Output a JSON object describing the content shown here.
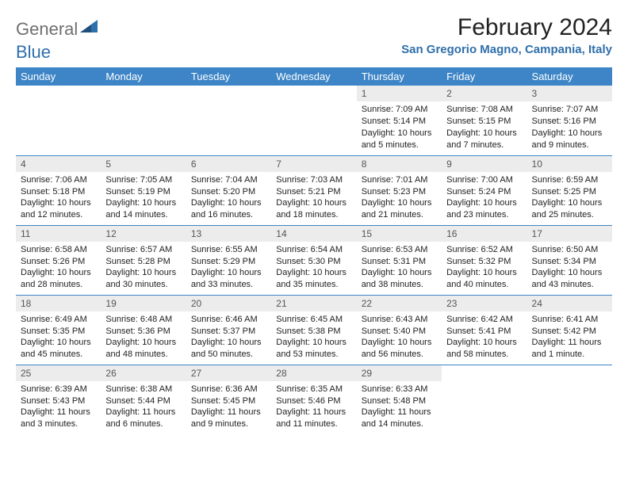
{
  "brand": {
    "word1": "General",
    "word2": "Blue"
  },
  "title": "February 2024",
  "location": "San Gregorio Magno, Campania, Italy",
  "colors": {
    "header_bg": "#3d85c6",
    "header_text": "#ffffff",
    "daynum_bg": "#ececec",
    "daynum_text": "#555555",
    "rule": "#3d85c6",
    "brand_gray": "#6f6f6f",
    "brand_blue": "#2f6fab"
  },
  "weekdays": [
    "Sunday",
    "Monday",
    "Tuesday",
    "Wednesday",
    "Thursday",
    "Friday",
    "Saturday"
  ],
  "weeks": [
    [
      {
        "blank": true
      },
      {
        "blank": true
      },
      {
        "blank": true
      },
      {
        "blank": true
      },
      {
        "d": "1",
        "sr": "Sunrise: 7:09 AM",
        "ss": "Sunset: 5:14 PM",
        "dl1": "Daylight: 10 hours",
        "dl2": "and 5 minutes."
      },
      {
        "d": "2",
        "sr": "Sunrise: 7:08 AM",
        "ss": "Sunset: 5:15 PM",
        "dl1": "Daylight: 10 hours",
        "dl2": "and 7 minutes."
      },
      {
        "d": "3",
        "sr": "Sunrise: 7:07 AM",
        "ss": "Sunset: 5:16 PM",
        "dl1": "Daylight: 10 hours",
        "dl2": "and 9 minutes."
      }
    ],
    [
      {
        "d": "4",
        "sr": "Sunrise: 7:06 AM",
        "ss": "Sunset: 5:18 PM",
        "dl1": "Daylight: 10 hours",
        "dl2": "and 12 minutes."
      },
      {
        "d": "5",
        "sr": "Sunrise: 7:05 AM",
        "ss": "Sunset: 5:19 PM",
        "dl1": "Daylight: 10 hours",
        "dl2": "and 14 minutes."
      },
      {
        "d": "6",
        "sr": "Sunrise: 7:04 AM",
        "ss": "Sunset: 5:20 PM",
        "dl1": "Daylight: 10 hours",
        "dl2": "and 16 minutes."
      },
      {
        "d": "7",
        "sr": "Sunrise: 7:03 AM",
        "ss": "Sunset: 5:21 PM",
        "dl1": "Daylight: 10 hours",
        "dl2": "and 18 minutes."
      },
      {
        "d": "8",
        "sr": "Sunrise: 7:01 AM",
        "ss": "Sunset: 5:23 PM",
        "dl1": "Daylight: 10 hours",
        "dl2": "and 21 minutes."
      },
      {
        "d": "9",
        "sr": "Sunrise: 7:00 AM",
        "ss": "Sunset: 5:24 PM",
        "dl1": "Daylight: 10 hours",
        "dl2": "and 23 minutes."
      },
      {
        "d": "10",
        "sr": "Sunrise: 6:59 AM",
        "ss": "Sunset: 5:25 PM",
        "dl1": "Daylight: 10 hours",
        "dl2": "and 25 minutes."
      }
    ],
    [
      {
        "d": "11",
        "sr": "Sunrise: 6:58 AM",
        "ss": "Sunset: 5:26 PM",
        "dl1": "Daylight: 10 hours",
        "dl2": "and 28 minutes."
      },
      {
        "d": "12",
        "sr": "Sunrise: 6:57 AM",
        "ss": "Sunset: 5:28 PM",
        "dl1": "Daylight: 10 hours",
        "dl2": "and 30 minutes."
      },
      {
        "d": "13",
        "sr": "Sunrise: 6:55 AM",
        "ss": "Sunset: 5:29 PM",
        "dl1": "Daylight: 10 hours",
        "dl2": "and 33 minutes."
      },
      {
        "d": "14",
        "sr": "Sunrise: 6:54 AM",
        "ss": "Sunset: 5:30 PM",
        "dl1": "Daylight: 10 hours",
        "dl2": "and 35 minutes."
      },
      {
        "d": "15",
        "sr": "Sunrise: 6:53 AM",
        "ss": "Sunset: 5:31 PM",
        "dl1": "Daylight: 10 hours",
        "dl2": "and 38 minutes."
      },
      {
        "d": "16",
        "sr": "Sunrise: 6:52 AM",
        "ss": "Sunset: 5:32 PM",
        "dl1": "Daylight: 10 hours",
        "dl2": "and 40 minutes."
      },
      {
        "d": "17",
        "sr": "Sunrise: 6:50 AM",
        "ss": "Sunset: 5:34 PM",
        "dl1": "Daylight: 10 hours",
        "dl2": "and 43 minutes."
      }
    ],
    [
      {
        "d": "18",
        "sr": "Sunrise: 6:49 AM",
        "ss": "Sunset: 5:35 PM",
        "dl1": "Daylight: 10 hours",
        "dl2": "and 45 minutes."
      },
      {
        "d": "19",
        "sr": "Sunrise: 6:48 AM",
        "ss": "Sunset: 5:36 PM",
        "dl1": "Daylight: 10 hours",
        "dl2": "and 48 minutes."
      },
      {
        "d": "20",
        "sr": "Sunrise: 6:46 AM",
        "ss": "Sunset: 5:37 PM",
        "dl1": "Daylight: 10 hours",
        "dl2": "and 50 minutes."
      },
      {
        "d": "21",
        "sr": "Sunrise: 6:45 AM",
        "ss": "Sunset: 5:38 PM",
        "dl1": "Daylight: 10 hours",
        "dl2": "and 53 minutes."
      },
      {
        "d": "22",
        "sr": "Sunrise: 6:43 AM",
        "ss": "Sunset: 5:40 PM",
        "dl1": "Daylight: 10 hours",
        "dl2": "and 56 minutes."
      },
      {
        "d": "23",
        "sr": "Sunrise: 6:42 AM",
        "ss": "Sunset: 5:41 PM",
        "dl1": "Daylight: 10 hours",
        "dl2": "and 58 minutes."
      },
      {
        "d": "24",
        "sr": "Sunrise: 6:41 AM",
        "ss": "Sunset: 5:42 PM",
        "dl1": "Daylight: 11 hours",
        "dl2": "and 1 minute."
      }
    ],
    [
      {
        "d": "25",
        "sr": "Sunrise: 6:39 AM",
        "ss": "Sunset: 5:43 PM",
        "dl1": "Daylight: 11 hours",
        "dl2": "and 3 minutes."
      },
      {
        "d": "26",
        "sr": "Sunrise: 6:38 AM",
        "ss": "Sunset: 5:44 PM",
        "dl1": "Daylight: 11 hours",
        "dl2": "and 6 minutes."
      },
      {
        "d": "27",
        "sr": "Sunrise: 6:36 AM",
        "ss": "Sunset: 5:45 PM",
        "dl1": "Daylight: 11 hours",
        "dl2": "and 9 minutes."
      },
      {
        "d": "28",
        "sr": "Sunrise: 6:35 AM",
        "ss": "Sunset: 5:46 PM",
        "dl1": "Daylight: 11 hours",
        "dl2": "and 11 minutes."
      },
      {
        "d": "29",
        "sr": "Sunrise: 6:33 AM",
        "ss": "Sunset: 5:48 PM",
        "dl1": "Daylight: 11 hours",
        "dl2": "and 14 minutes."
      },
      {
        "blank": true
      },
      {
        "blank": true
      }
    ]
  ]
}
